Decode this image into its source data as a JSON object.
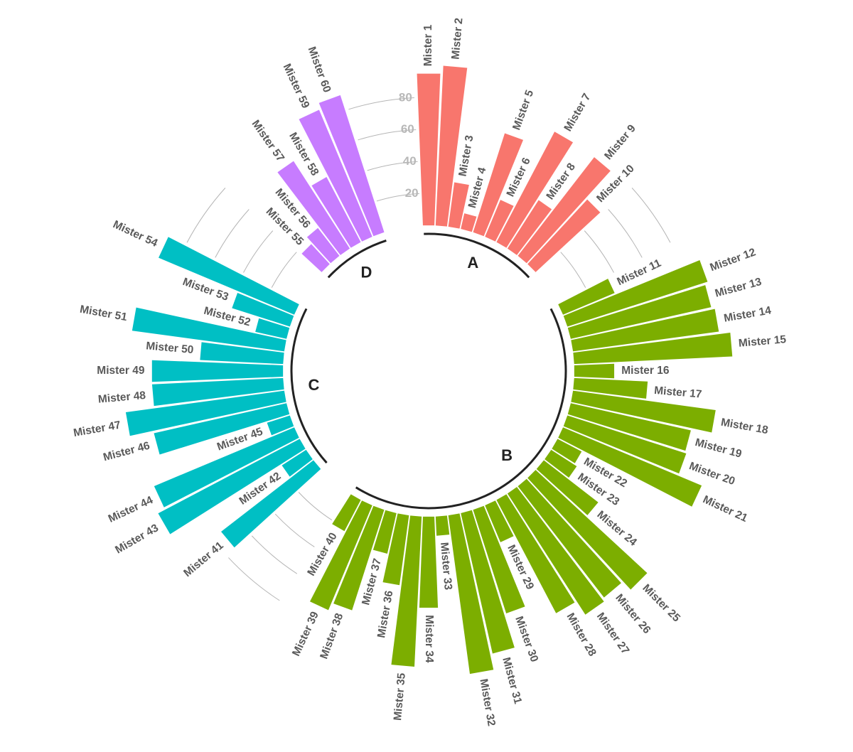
{
  "chart_data": {
    "type": "bar",
    "layout": "circular",
    "title": "",
    "xlabel": "",
    "ylabel": "",
    "ylim": [
      0,
      100
    ],
    "y_ticks": [
      20,
      40,
      60,
      80
    ],
    "grid": true,
    "legend": "none",
    "groups": [
      {
        "name": "A",
        "color": "#F8766D"
      },
      {
        "name": "B",
        "color": "#7CAE00"
      },
      {
        "name": "C",
        "color": "#00BFC4"
      },
      {
        "name": "D",
        "color": "#C77CFF"
      }
    ],
    "bars": [
      {
        "label": "Mister 1",
        "group": "A",
        "value": 95
      },
      {
        "label": "Mister 2",
        "group": "A",
        "value": 100
      },
      {
        "label": "Mister 3",
        "group": "A",
        "value": 28
      },
      {
        "label": "Mister 4",
        "group": "A",
        "value": 10
      },
      {
        "label": "Mister 5",
        "group": "A",
        "value": 65
      },
      {
        "label": "Mister 6",
        "group": "A",
        "value": 25
      },
      {
        "label": "Mister 7",
        "group": "A",
        "value": 78
      },
      {
        "label": "Mister 8",
        "group": "A",
        "value": 36
      },
      {
        "label": "Mister 9",
        "group": "A",
        "value": 78
      },
      {
        "label": "Mister 10",
        "group": "A",
        "value": 55
      },
      {
        "label": "Mister 11",
        "group": "B",
        "value": 35
      },
      {
        "label": "Mister 12",
        "group": "B",
        "value": 92
      },
      {
        "label": "Mister 13",
        "group": "B",
        "value": 90
      },
      {
        "label": "Mister 14",
        "group": "B",
        "value": 92
      },
      {
        "label": "Mister 15",
        "group": "B",
        "value": 99
      },
      {
        "label": "Mister 16",
        "group": "B",
        "value": 25
      },
      {
        "label": "Mister 17",
        "group": "B",
        "value": 46
      },
      {
        "label": "Mister 18",
        "group": "B",
        "value": 90
      },
      {
        "label": "Mister 19",
        "group": "B",
        "value": 77
      },
      {
        "label": "Mister 20",
        "group": "B",
        "value": 78
      },
      {
        "label": "Mister 21",
        "group": "B",
        "value": 94
      },
      {
        "label": "Mister 22",
        "group": "B",
        "value": 17
      },
      {
        "label": "Mister 23",
        "group": "B",
        "value": 19
      },
      {
        "label": "Mister 24",
        "group": "B",
        "value": 43
      },
      {
        "label": "Mister 25",
        "group": "B",
        "value": 95
      },
      {
        "label": "Mister 26",
        "group": "B",
        "value": 88
      },
      {
        "label": "Mister 27",
        "group": "B",
        "value": 90
      },
      {
        "label": "Mister 28",
        "group": "B",
        "value": 80
      },
      {
        "label": "Mister 29",
        "group": "B",
        "value": 25
      },
      {
        "label": "Mister 30",
        "group": "B",
        "value": 68
      },
      {
        "label": "Mister 31",
        "group": "B",
        "value": 90
      },
      {
        "label": "Mister 32",
        "group": "B",
        "value": 100
      },
      {
        "label": "Mister 33",
        "group": "B",
        "value": 12
      },
      {
        "label": "Mister 34",
        "group": "B",
        "value": 57
      },
      {
        "label": "Mister 35",
        "group": "B",
        "value": 94
      },
      {
        "label": "Mister 36",
        "group": "B",
        "value": 44
      },
      {
        "label": "Mister 37",
        "group": "B",
        "value": 26
      },
      {
        "label": "Mister 38",
        "group": "B",
        "value": 66
      },
      {
        "label": "Mister 39",
        "group": "B",
        "value": 71
      },
      {
        "label": "Mister 40",
        "group": "B",
        "value": 22
      },
      {
        "label": "Mister 41",
        "group": "C",
        "value": 73
      },
      {
        "label": "Mister 42",
        "group": "C",
        "value": 18
      },
      {
        "label": "Mister 43",
        "group": "C",
        "value": 100
      },
      {
        "label": "Mister 44",
        "group": "C",
        "value": 95
      },
      {
        "label": "Mister 45",
        "group": "C",
        "value": 15
      },
      {
        "label": "Mister 46",
        "group": "C",
        "value": 85
      },
      {
        "label": "Mister 47",
        "group": "C",
        "value": 100
      },
      {
        "label": "Mister 48",
        "group": "C",
        "value": 82
      },
      {
        "label": "Mister 49",
        "group": "C",
        "value": 82
      },
      {
        "label": "Mister 50",
        "group": "C",
        "value": 52
      },
      {
        "label": "Mister 51",
        "group": "C",
        "value": 96
      },
      {
        "label": "Mister 52",
        "group": "C",
        "value": 20
      },
      {
        "label": "Mister 53",
        "group": "C",
        "value": 38
      },
      {
        "label": "Mister 54",
        "group": "C",
        "value": 92
      },
      {
        "label": "Mister 55",
        "group": "D",
        "value": 17
      },
      {
        "label": "Mister 56",
        "group": "D",
        "value": 22
      },
      {
        "label": "Mister 57",
        "group": "D",
        "value": 65
      },
      {
        "label": "Mister 58",
        "group": "D",
        "value": 46
      },
      {
        "label": "Mister 59",
        "group": "D",
        "value": 86
      },
      {
        "label": "Mister 60",
        "group": "D",
        "value": 90
      }
    ]
  }
}
